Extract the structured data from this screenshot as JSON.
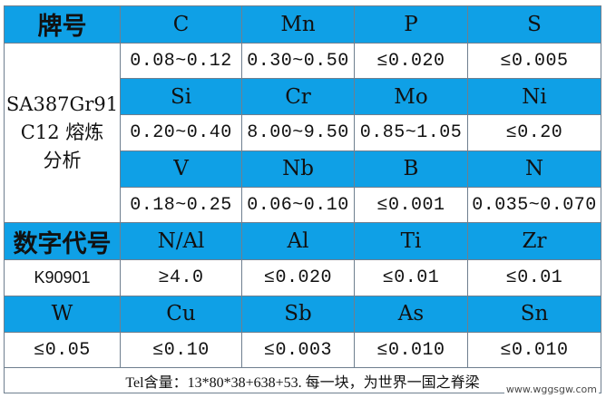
{
  "headers": {
    "grade": "牌号",
    "numeric_code": "数字代号"
  },
  "grade_name": {
    "line1": "SA387Gr91",
    "line2": "C12 熔炼",
    "line3": "分析"
  },
  "block1": {
    "elements": [
      "C",
      "Mn",
      "P",
      "S"
    ],
    "values": [
      "0.08~0.12",
      "0.30~0.50",
      "≤0.020",
      "≤0.005"
    ]
  },
  "block2": {
    "elements": [
      "Si",
      "Cr",
      "Mo",
      "Ni"
    ],
    "values": [
      "0.20~0.40",
      "8.00~9.50",
      "0.85~1.05",
      "≤0.20"
    ]
  },
  "block3": {
    "elements": [
      "V",
      "Nb",
      "B",
      "N"
    ],
    "values": [
      "0.18~0.25",
      "0.06~0.10",
      "≤0.001",
      "0.035~0.070"
    ]
  },
  "block4": {
    "elements": [
      "N/Al",
      "Al",
      "Ti",
      "Zr"
    ],
    "code": "K90901",
    "values": [
      "≥4.0",
      "≤0.020",
      "≤0.01",
      "≤0.01"
    ]
  },
  "block5": {
    "elements": [
      "W",
      "Cu",
      "Sb",
      "As",
      "Sn"
    ],
    "values": [
      "≤0.05",
      "≤0.10",
      "≤0.003",
      "≤0.010",
      "≤0.010"
    ]
  },
  "footer": {
    "text": "Tel含量：13*80*38+638+53. 每一块，为世界一国之脊梁"
  },
  "watermark": "www.wggsgw.com",
  "colors": {
    "header_bg": "#0fa0e6",
    "border": "#6f7f8f"
  }
}
